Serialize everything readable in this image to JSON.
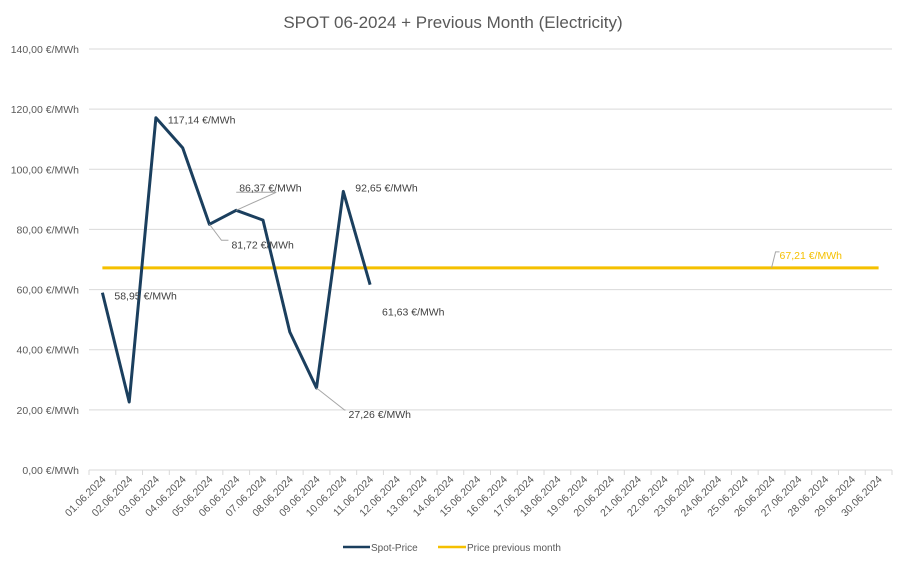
{
  "chart_data": {
    "type": "line",
    "title": "SPOT 06-2024 + Previous Month (Electricity)",
    "xlabel": "",
    "ylabel": "",
    "ylim": [
      0,
      140
    ],
    "y_ticks": [
      0,
      20,
      40,
      60,
      80,
      100,
      120,
      140
    ],
    "y_tick_labels": [
      "0,00 €/MWh",
      "20,00 €/MWh",
      "40,00 €/MWh",
      "60,00 €/MWh",
      "80,00 €/MWh",
      "100,00 €/MWh",
      "120,00 €/MWh",
      "140,00 €/MWh"
    ],
    "grid": true,
    "legend_position": "bottom",
    "categories": [
      "01.06.2024",
      "02.06.2024",
      "03.06.2024",
      "04.06.2024",
      "05.06.2024",
      "06.06.2024",
      "07.06.2024",
      "08.06.2024",
      "09.06.2024",
      "10.06.2024",
      "11.06.2024",
      "12.06.2024",
      "13.06.2024",
      "14.06.2024",
      "15.06.2024",
      "16.06.2024",
      "17.06.2024",
      "18.06.2024",
      "19.06.2024",
      "20.06.2024",
      "21.06.2024",
      "22.06.2024",
      "23.06.2024",
      "24.06.2024",
      "25.06.2024",
      "26.06.2024",
      "27.06.2024",
      "28.06.2024",
      "29.06.2024",
      "30.06.2024"
    ],
    "series": [
      {
        "name": "Spot-Price",
        "color": "#1b3f5e",
        "values": [
          58.95,
          22.6,
          117.14,
          107.1,
          81.72,
          86.37,
          83.1,
          45.9,
          27.26,
          92.65,
          61.63,
          null,
          null,
          null,
          null,
          null,
          null,
          null,
          null,
          null,
          null,
          null,
          null,
          null,
          null,
          null,
          null,
          null,
          null,
          null
        ]
      },
      {
        "name": "Price previous month",
        "color": "#f5c000",
        "values": [
          67.21,
          67.21,
          67.21,
          67.21,
          67.21,
          67.21,
          67.21,
          67.21,
          67.21,
          67.21,
          67.21,
          67.21,
          67.21,
          67.21,
          67.21,
          67.21,
          67.21,
          67.21,
          67.21,
          67.21,
          67.21,
          67.21,
          67.21,
          67.21,
          67.21,
          67.21,
          67.21,
          67.21,
          67.21,
          67.21
        ]
      }
    ],
    "annotations": [
      {
        "series": 0,
        "index": 0,
        "text": "58,95 €/MWh"
      },
      {
        "series": 0,
        "index": 2,
        "text": "117,14 €/MWh"
      },
      {
        "series": 0,
        "index": 4,
        "text": "81,72 €/MWh"
      },
      {
        "series": 0,
        "index": 5,
        "text": "86,37 €/MWh"
      },
      {
        "series": 0,
        "index": 8,
        "text": "27,26 €/MWh"
      },
      {
        "series": 0,
        "index": 9,
        "text": "92,65 €/MWh"
      },
      {
        "series": 0,
        "index": 10,
        "text": "61,63 €/MWh"
      },
      {
        "series": 1,
        "index": 25,
        "text": "67,21 €/MWh"
      }
    ]
  }
}
